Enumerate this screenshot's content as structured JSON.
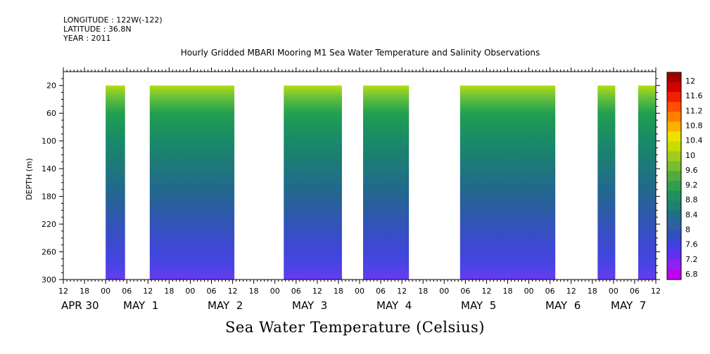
{
  "header": {
    "longitude": "LONGITUDE : 122W(-122)",
    "latitude": "LATITUDE : 36.8N",
    "year": "YEAR : 2011",
    "title": "Hourly Gridded MBARI Mooring M1 Sea Water Temperature and Salinity Observations"
  },
  "footer": {
    "variable": "Sea Water Temperature (Celsius)"
  },
  "chart_data": {
    "type": "heatmap",
    "title": "Hourly Gridded MBARI Mooring M1 Sea Water Temperature and Salinity Observations",
    "ylabel": "DEPTH (m)",
    "xlabel": "",
    "colorbar_label": "Sea Water Temperature (Celsius)",
    "ylim": [
      300,
      0
    ],
    "y_ticks": [
      20,
      60,
      100,
      140,
      180,
      220,
      260,
      300
    ],
    "x_range_hours": [
      0,
      168
    ],
    "x_tick_labels": [
      "12",
      "18",
      "00",
      "06",
      "12",
      "18",
      "00",
      "06",
      "12",
      "18",
      "00",
      "06",
      "12",
      "18",
      "00",
      "06",
      "12",
      "18",
      "00",
      "06",
      "12",
      "18",
      "00",
      "06",
      "12",
      "18",
      "00",
      "06",
      "12"
    ],
    "day_labels": [
      "APR 30",
      "MAY  1",
      "MAY  2",
      "MAY  3",
      "MAY  4",
      "MAY  5",
      "MAY  6",
      "MAY  7"
    ],
    "colorbar_levels": [
      "12",
      "11.6",
      "11.2",
      "10.8",
      "10.4",
      "10",
      "9.6",
      "9.2",
      "8.8",
      "8.4",
      "8",
      "7.6",
      "7.2",
      "6.8"
    ],
    "colorbar_colors": [
      "#a00000",
      "#d40000",
      "#f02000",
      "#ff5000",
      "#ff8000",
      "#ffb000",
      "#f0e000",
      "#c8dc00",
      "#a0cc20",
      "#78bc30",
      "#50ac40",
      "#30a050",
      "#209060",
      "#208070",
      "#206f88",
      "#3060a0",
      "#3050c0",
      "#4040e0",
      "#6030f0",
      "#9020f0",
      "#c000f0"
    ],
    "observation_blocks_hours": [
      [
        12,
        17.5
      ],
      [
        24.5,
        48.5
      ],
      [
        62.5,
        79
      ],
      [
        85,
        98
      ],
      [
        112.5,
        139.5
      ],
      [
        151.5,
        156.5
      ],
      [
        163,
        169.5
      ],
      [
        189.5,
        201
      ]
    ],
    "depth_profile": [
      {
        "depth": 20,
        "temp": 10.0
      },
      {
        "depth": 40,
        "temp": 9.4
      },
      {
        "depth": 60,
        "temp": 8.9
      },
      {
        "depth": 80,
        "temp": 8.7
      },
      {
        "depth": 100,
        "temp": 8.5
      },
      {
        "depth": 120,
        "temp": 8.3
      },
      {
        "depth": 140,
        "temp": 8.15
      },
      {
        "depth": 160,
        "temp": 8.0
      },
      {
        "depth": 180,
        "temp": 7.9
      },
      {
        "depth": 200,
        "temp": 7.8
      },
      {
        "depth": 220,
        "temp": 7.7
      },
      {
        "depth": 240,
        "temp": 7.6
      },
      {
        "depth": 260,
        "temp": 7.5
      },
      {
        "depth": 280,
        "temp": 7.4
      },
      {
        "depth": 300,
        "temp": 7.2
      }
    ]
  }
}
